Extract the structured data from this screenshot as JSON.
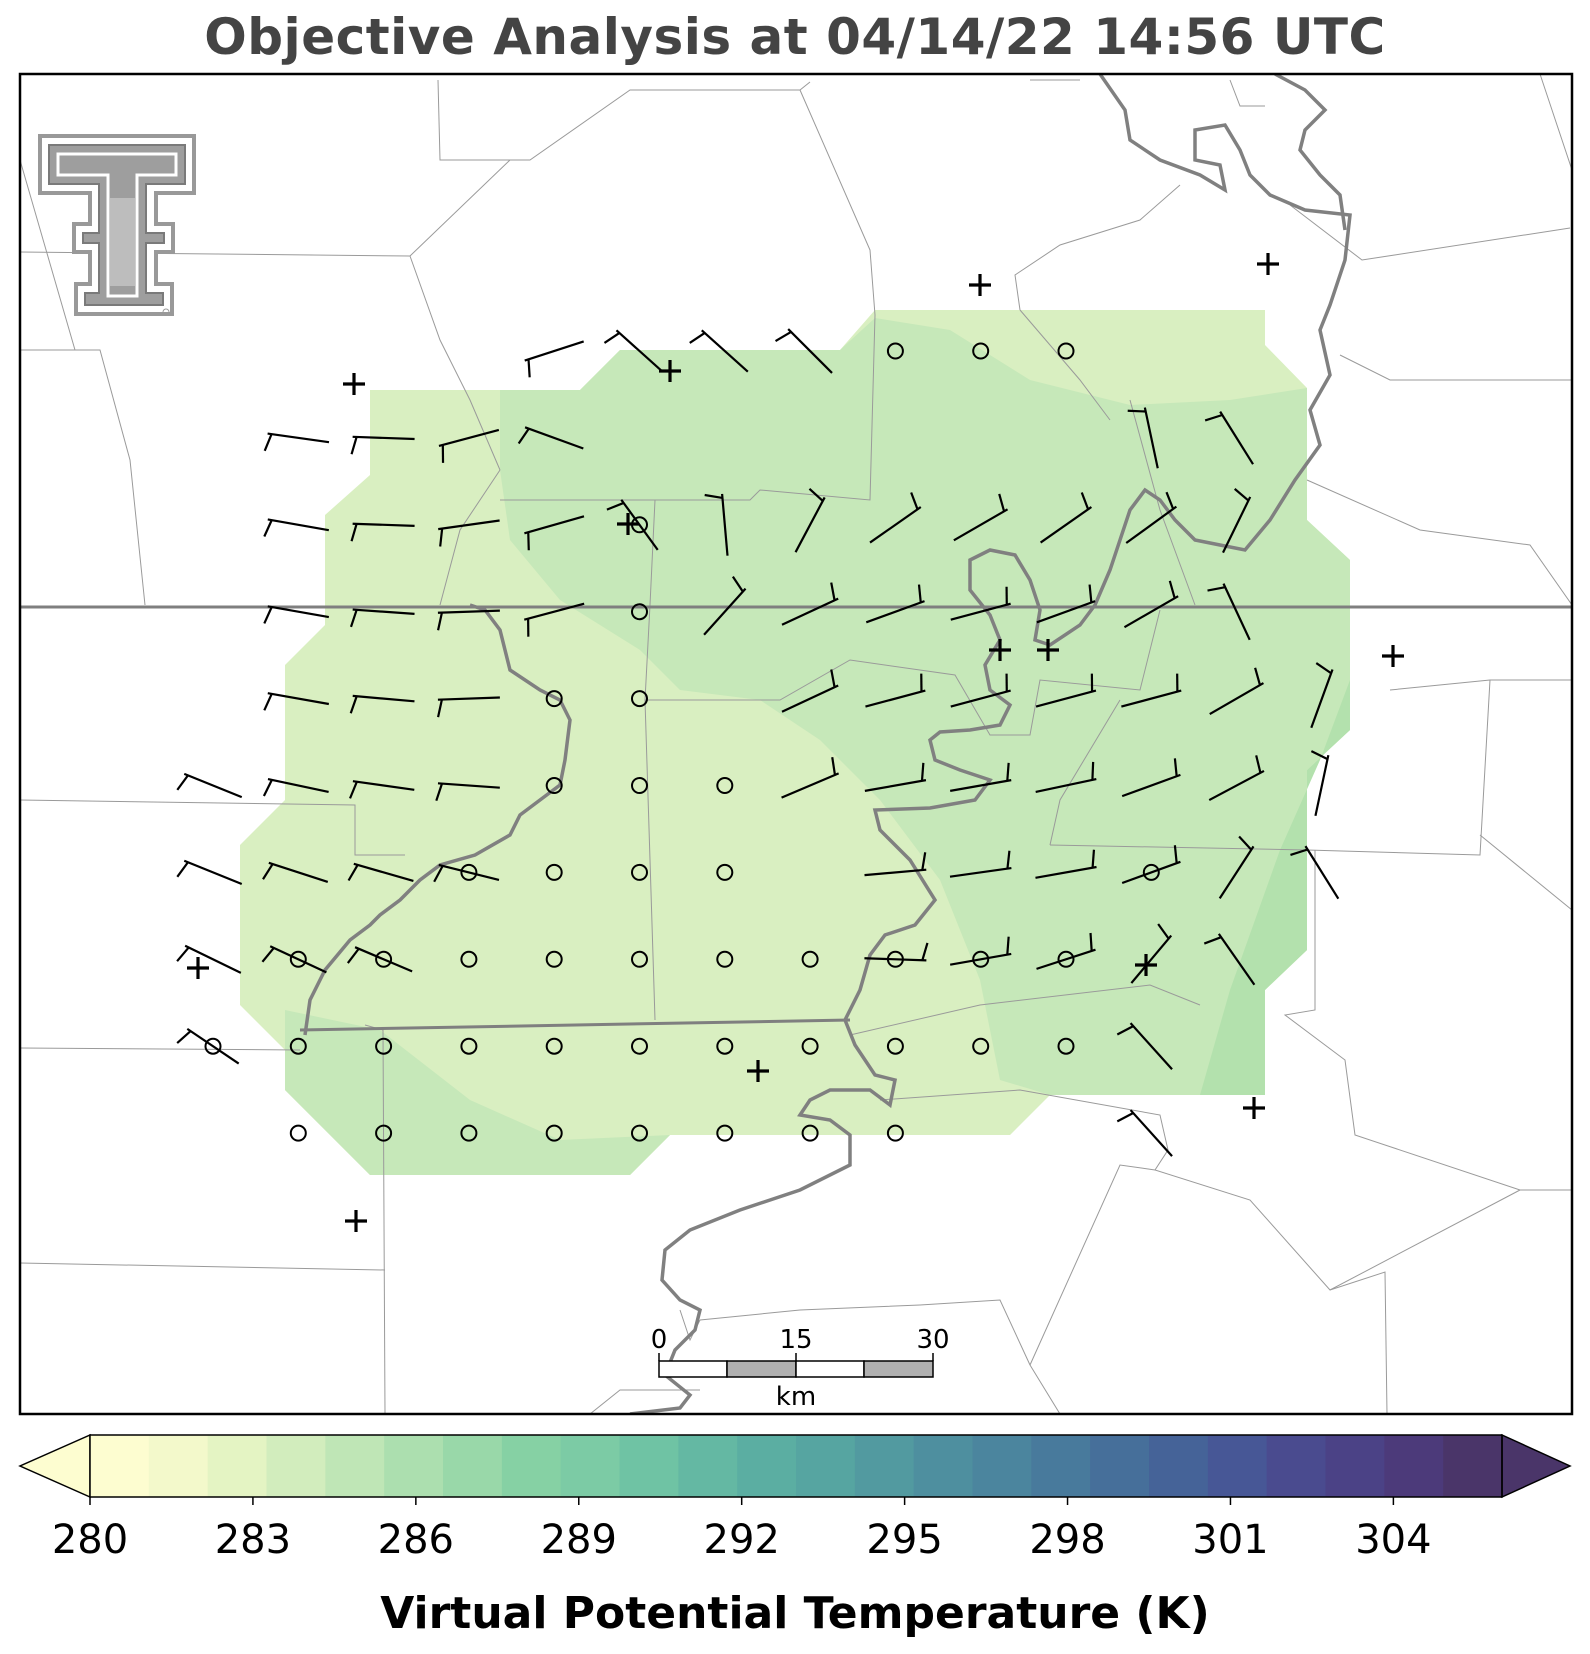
{
  "title": "Objective Analysis at 04/14/22 14:56 UTC",
  "logo_icon": "texas-tech-double-t-logo",
  "colors": {
    "boundary_county": "#9a9a9a",
    "boundary_state": "#7f7f7f",
    "river": "#808080",
    "wind_barb": "#000000",
    "field_light": "#d9efc1",
    "field_mid": "#c6e8b9",
    "field_dark": "#b3e1ad"
  },
  "scale_bar": {
    "ticks": [
      "0",
      "15",
      "30"
    ],
    "unit": "km"
  },
  "colorbar": {
    "label": "Virtual Potential Temperature (K)",
    "min": 280,
    "max": 306,
    "step": 1,
    "extend": "both",
    "tick_labels": [
      "280",
      "283",
      "286",
      "289",
      "292",
      "295",
      "298",
      "301",
      "304"
    ],
    "colors": [
      "#fdfdd0",
      "#f3f9cb",
      "#e4f4c3",
      "#d2edbd",
      "#bfe6b6",
      "#acdfaf",
      "#99d8a9",
      "#86d1a4",
      "#7ccba5",
      "#6fc3a4",
      "#64b8a3",
      "#5baea2",
      "#56a5a1",
      "#529aa0",
      "#4e8f9f",
      "#4b859e",
      "#487a9c",
      "#466f9a",
      "#456398",
      "#475796",
      "#4a4b8f",
      "#4b4286",
      "#4c3a7a",
      "#4a3569"
    ]
  },
  "stations": [
    {
      "id": 1
    },
    {
      "id": 2
    },
    {
      "id": 3
    },
    {
      "id": 4
    },
    {
      "id": 5
    },
    {
      "id": 6
    },
    {
      "id": 7
    },
    {
      "id": 8
    },
    {
      "id": 9
    },
    {
      "id": 10
    },
    {
      "id": 11
    },
    {
      "id": 12
    },
    {
      "id": 13
    }
  ]
}
